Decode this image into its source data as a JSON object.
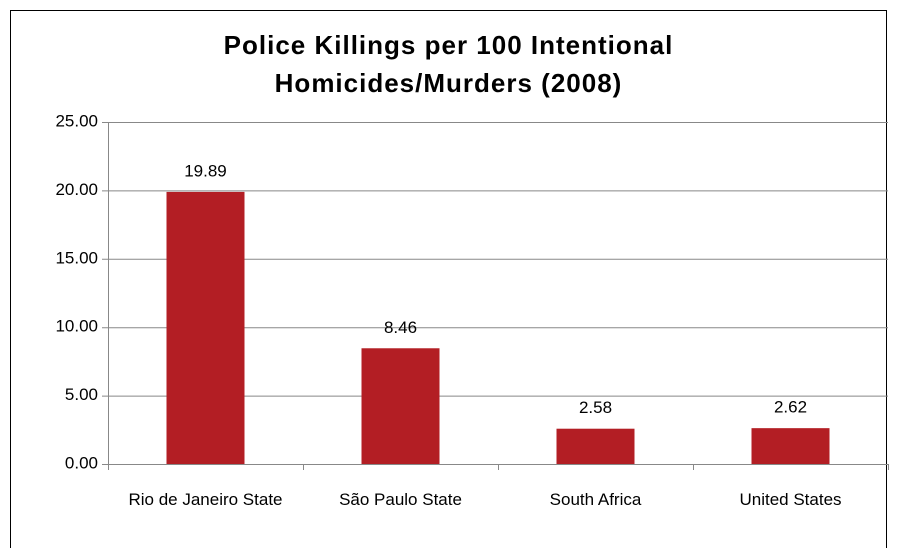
{
  "chart_data": {
    "type": "bar",
    "title": "Police Killings per 100 Intentional Homicides/Murders (2008)",
    "categories": [
      "Rio de Janeiro State",
      "São Paulo State",
      "South Africa",
      "United States"
    ],
    "values": [
      19.89,
      8.46,
      2.58,
      2.62
    ],
    "color": "#b31e24",
    "ylim": [
      0,
      25
    ],
    "yticks": [
      {
        "value": 0,
        "label": "0.00"
      },
      {
        "value": 5,
        "label": "5.00"
      },
      {
        "value": 10,
        "label": "10.00"
      },
      {
        "value": 15,
        "label": "15.00"
      },
      {
        "value": 20,
        "label": "20.00"
      },
      {
        "value": 25,
        "label": "25.00"
      }
    ],
    "grid": true
  }
}
